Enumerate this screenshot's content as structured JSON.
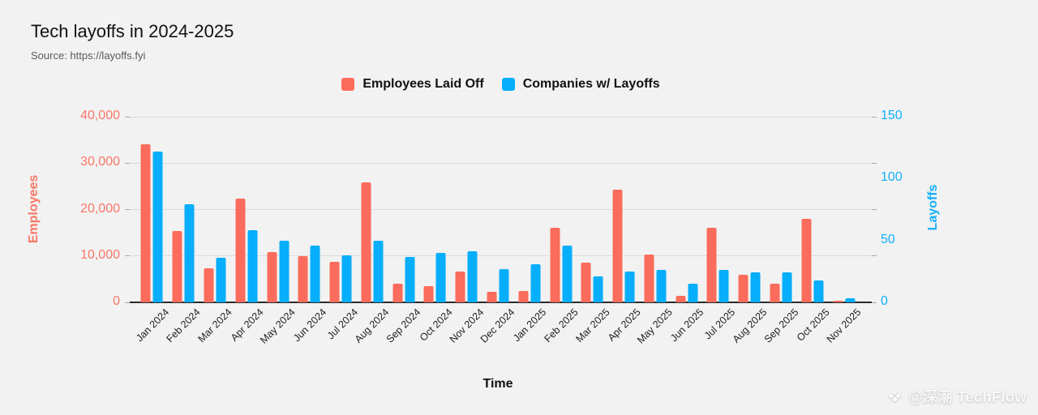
{
  "header": {
    "title": "Tech layoffs in 2024-2025",
    "source": "Source: https://layoffs.fyi"
  },
  "legend": [
    {
      "label": "Employees Laid Off",
      "color": "#fb6c5c"
    },
    {
      "label": "Companies w/ Layoffs",
      "color": "#06aefb"
    }
  ],
  "colors": {
    "employees": "#fb6c5c",
    "companies": "#06aefb",
    "background": "#f2f2f2",
    "gridline": "#dcdcdc"
  },
  "watermark": {
    "logo_glyph": "❖",
    "text": "@深潮 TechFlow"
  },
  "chart_data": {
    "type": "bar",
    "title": "Tech layoffs in 2024-2025",
    "subtitle": "Source: https://layoffs.fyi",
    "grid": true,
    "legend_position": "top",
    "categories": [
      "Jan 2024",
      "Feb 2024",
      "Mar 2024",
      "Apr 2024",
      "May 2024",
      "Jun 2024",
      "Jul 2024",
      "Aug 2024",
      "Sep 2024",
      "Oct 2024",
      "Nov 2024",
      "Dec 2024",
      "Jan 2025",
      "Feb 2025",
      "Mar 2025",
      "Apr 2025",
      "May 2025",
      "Jun 2025",
      "Jul 2025",
      "Aug 2025",
      "Sep 2025",
      "Oct 2025",
      "Nov 2025"
    ],
    "series": [
      {
        "name": "Employees Laid Off",
        "axis": "left",
        "color": "#fb6c5c",
        "values": [
          34000,
          15400,
          7300,
          22300,
          10800,
          9900,
          8800,
          25800,
          4100,
          3500,
          6600,
          2300,
          2400,
          16100,
          8600,
          24300,
          10300,
          1400,
          16000,
          5900,
          4000,
          18000,
          400
        ]
      },
      {
        "name": "Companies w/ Layoffs",
        "axis": "right",
        "color": "#06aefb",
        "values": [
          122,
          79,
          36,
          58,
          50,
          46,
          38,
          50,
          37,
          40,
          41,
          27,
          31,
          46,
          21,
          25,
          26,
          15,
          26,
          24,
          24,
          18,
          3
        ]
      }
    ],
    "left_axis": {
      "title": "Employees",
      "min": 0,
      "max": 40000,
      "tick_labels": [
        "0",
        "10,000",
        "20,000",
        "30,000",
        "40,000"
      ],
      "color": "#f87766"
    },
    "right_axis": {
      "title": "Layoffs",
      "min": 0,
      "max": 150,
      "tick_labels": [
        "0",
        "50",
        "100",
        "150"
      ],
      "color": "#12b0fb"
    },
    "x_axis": {
      "title": "Time"
    }
  }
}
